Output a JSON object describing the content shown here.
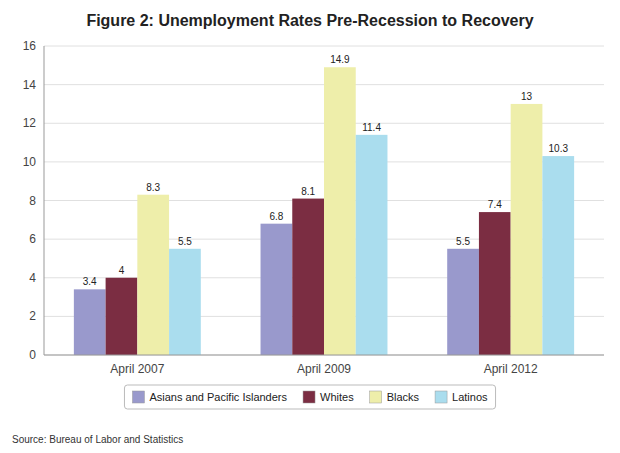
{
  "chart_data": {
    "type": "bar",
    "title": "Figure 2: Unemployment Rates Pre-Recession to Recovery",
    "categories": [
      "April 2007",
      "April 2009",
      "April 2012"
    ],
    "series": [
      {
        "name": "Asians and Pacific Islanders",
        "color": "#9999CC",
        "values": [
          3.4,
          6.8,
          5.5
        ]
      },
      {
        "name": "Whites",
        "color": "#7B2D42",
        "values": [
          4.0,
          8.1,
          7.4
        ]
      },
      {
        "name": "Blacks",
        "color": "#EEEEAA",
        "values": [
          8.3,
          14.9,
          13.0
        ]
      },
      {
        "name": "Latinos",
        "color": "#AADDEE",
        "values": [
          5.5,
          11.4,
          10.3
        ]
      }
    ],
    "ylim": [
      0,
      16
    ],
    "yticks": [
      0,
      2,
      4,
      6,
      8,
      10,
      12,
      14,
      16
    ],
    "grid": true,
    "legend": "bottom",
    "data_labels": true,
    "annotations": [
      "Source: Bureau of Labor and Statistics"
    ]
  }
}
